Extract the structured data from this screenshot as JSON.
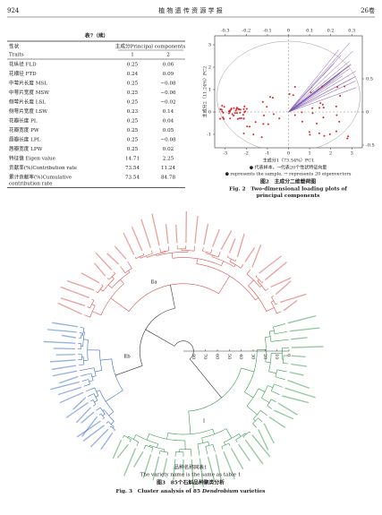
{
  "header": {
    "page": "924",
    "journal": "植 物 遗 传 资 源 学 报",
    "volume": "26卷"
  },
  "table": {
    "title": "表7（续）",
    "head": {
      "trait_cn": "性状",
      "trait_en": "Traits",
      "pc": "主成分Principal components",
      "pc1": "1",
      "pc2": "2"
    },
    "rows": [
      {
        "label": "花纵径 FLD",
        "pc1": "0.25",
        "pc2": "0.06"
      },
      {
        "label": "花横径 FTD",
        "pc1": "0.24",
        "pc2": "0.09"
      },
      {
        "label": "中萼片长度 MSL",
        "pc1": "0.25",
        "pc2": "−0.08"
      },
      {
        "label": "中萼片宽度 MSW",
        "pc1": "0.25",
        "pc2": "−0.06"
      },
      {
        "label": "侧萼片长度 LSL",
        "pc1": "0.25",
        "pc2": "−0.02"
      },
      {
        "label": "侧萼片宽度 LSW",
        "pc1": "0.23",
        "pc2": "0.14"
      },
      {
        "label": "花瓣长度 PL",
        "pc1": "0.25",
        "pc2": "0.04"
      },
      {
        "label": "花瓣宽度 PW",
        "pc1": "0.25",
        "pc2": "0.05"
      },
      {
        "label": "唇瓣长度 LPL",
        "pc1": "0.25",
        "pc2": "−0.08"
      },
      {
        "label": "唇瓣宽度 LPW",
        "pc1": "0.25",
        "pc2": "0.02"
      },
      {
        "label": "特征值 Eigen value",
        "pc1": "14.71",
        "pc2": "2.25"
      },
      {
        "label": "贡献率(%)Contribution rate",
        "pc1": "73.54",
        "pc2": "11.24"
      },
      {
        "label": [
          "累计贡献率(%)Cumulative",
          "contribution rate"
        ],
        "pc1": "73.54",
        "pc2": "84.78"
      }
    ]
  },
  "figure2": {
    "top_ticks": [
      "-0.3",
      "-0.2",
      "-0.1",
      "0",
      "0.1",
      "0.2",
      "0.3"
    ],
    "bottom_ticks": [
      "-3",
      "-2",
      "-1",
      "0",
      "1",
      "2",
      "3"
    ],
    "left_ticks": [
      "3",
      "2",
      "1",
      "0",
      "-1"
    ],
    "right_ticks": [
      "0.5",
      "0",
      "-0.5"
    ],
    "x_label": "主成分1（73.54%）PC1",
    "y_label": "主成分2（11.24%）PC2",
    "legend_cn": "● 代表样本，→代表20个性状特征向量",
    "legend_en": "● represents the sample, → represents 20 eigenvectors",
    "caption_cn": "图2　主成分二维载荷图",
    "caption_en": [
      "Fig. 2　Two-dimensional loading plots of",
      "principal components"
    ]
  },
  "figure3": {
    "scale_ticks": [
      "80",
      "70",
      "60",
      "50",
      "40",
      "30",
      "20",
      "10",
      "0"
    ],
    "clusters": [
      "Ⅱa",
      "Ⅱb",
      "Ⅰ"
    ],
    "note_cn": "品种名称同表1",
    "note_en": "The variety name is the same as table 1",
    "caption_cn": "图3　85个石斛品种聚类分析",
    "caption_en": {
      "pre": "Fig. 3　Cluster analysis of 85 ",
      "italic": "Dendrobium",
      "post": " varieties"
    }
  }
}
